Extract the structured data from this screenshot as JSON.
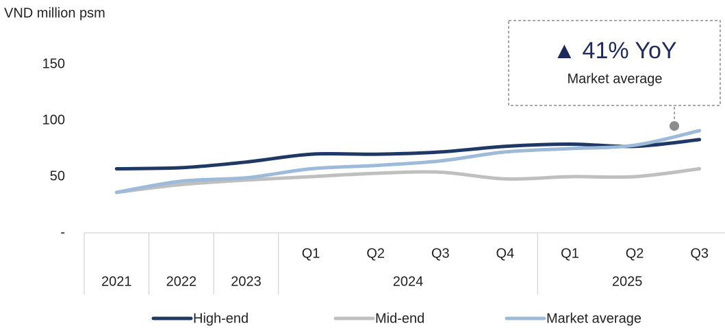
{
  "chart_data": {
    "type": "line",
    "ylabel": "VND million psm",
    "categories": [
      null,
      null,
      null,
      "Q1",
      "Q2",
      "Q3",
      "Q4",
      "Q1",
      "Q2",
      "Q3"
    ],
    "category_groups": [
      "2021",
      "2022",
      "2023",
      "2024",
      null,
      null,
      null,
      "2025",
      null,
      null
    ],
    "series": [
      {
        "name": "High-end",
        "color": "#1f3864",
        "values": [
          57,
          58,
          63,
          70,
          70,
          72,
          77,
          79,
          77,
          83
        ]
      },
      {
        "name": "Mid-end",
        "color": "#bfbfbf",
        "values": [
          36,
          43,
          47,
          50,
          53,
          54,
          48,
          50,
          50,
          57
        ]
      },
      {
        "name": "Market average",
        "color": "#9dbad9",
        "values": [
          36,
          46,
          49,
          57,
          60,
          64,
          72,
          75,
          78,
          91
        ]
      }
    ],
    "ylim": [
      0,
      150
    ],
    "yticks": [
      {
        "value": 0,
        "label": "-"
      },
      50,
      100,
      150
    ],
    "annotation": {
      "title": "▲ 41% YoY",
      "text": "Market average"
    }
  }
}
